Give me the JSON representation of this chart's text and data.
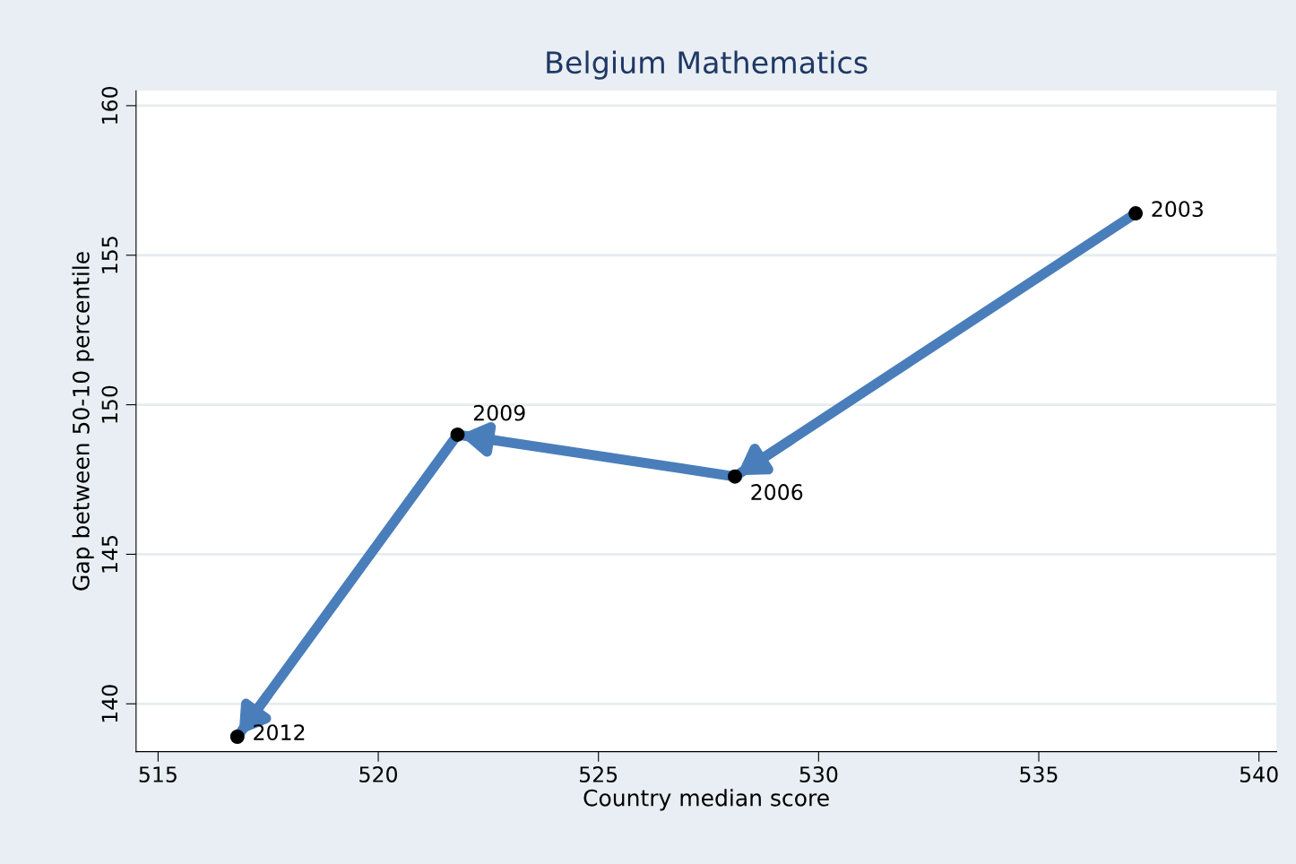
{
  "chart_data": {
    "type": "line",
    "title": "Belgium Mathematics",
    "xlabel": "Country median score",
    "ylabel": "Gap between 50-10 percentile",
    "x": [
      537.2,
      528.1,
      521.8,
      516.8
    ],
    "series": [
      {
        "color": "#4a7ebb",
        "values": [
          156.4,
          147.6,
          149.0,
          138.9
        ]
      },
      {
        "type": "scatter",
        "color": "#000000",
        "values": [
          156.4,
          147.6,
          149.0,
          138.9
        ]
      }
    ],
    "annotations": [
      {
        "text": "2003",
        "x": 537.2,
        "y": 156.4
      },
      {
        "text": "2006",
        "x": 528.1,
        "y": 147.6
      },
      {
        "text": "2009",
        "x": 521.8,
        "y": 149.0
      },
      {
        "text": "2012",
        "x": 516.8,
        "y": 138.9
      }
    ],
    "xlim": [
      514.5,
      540.4
    ],
    "ylim": [
      138.4,
      160.5
    ],
    "xticks": [
      515,
      520,
      525,
      530,
      535,
      540
    ],
    "yticks": [
      140,
      145,
      150,
      155,
      160
    ],
    "grid": "y"
  }
}
